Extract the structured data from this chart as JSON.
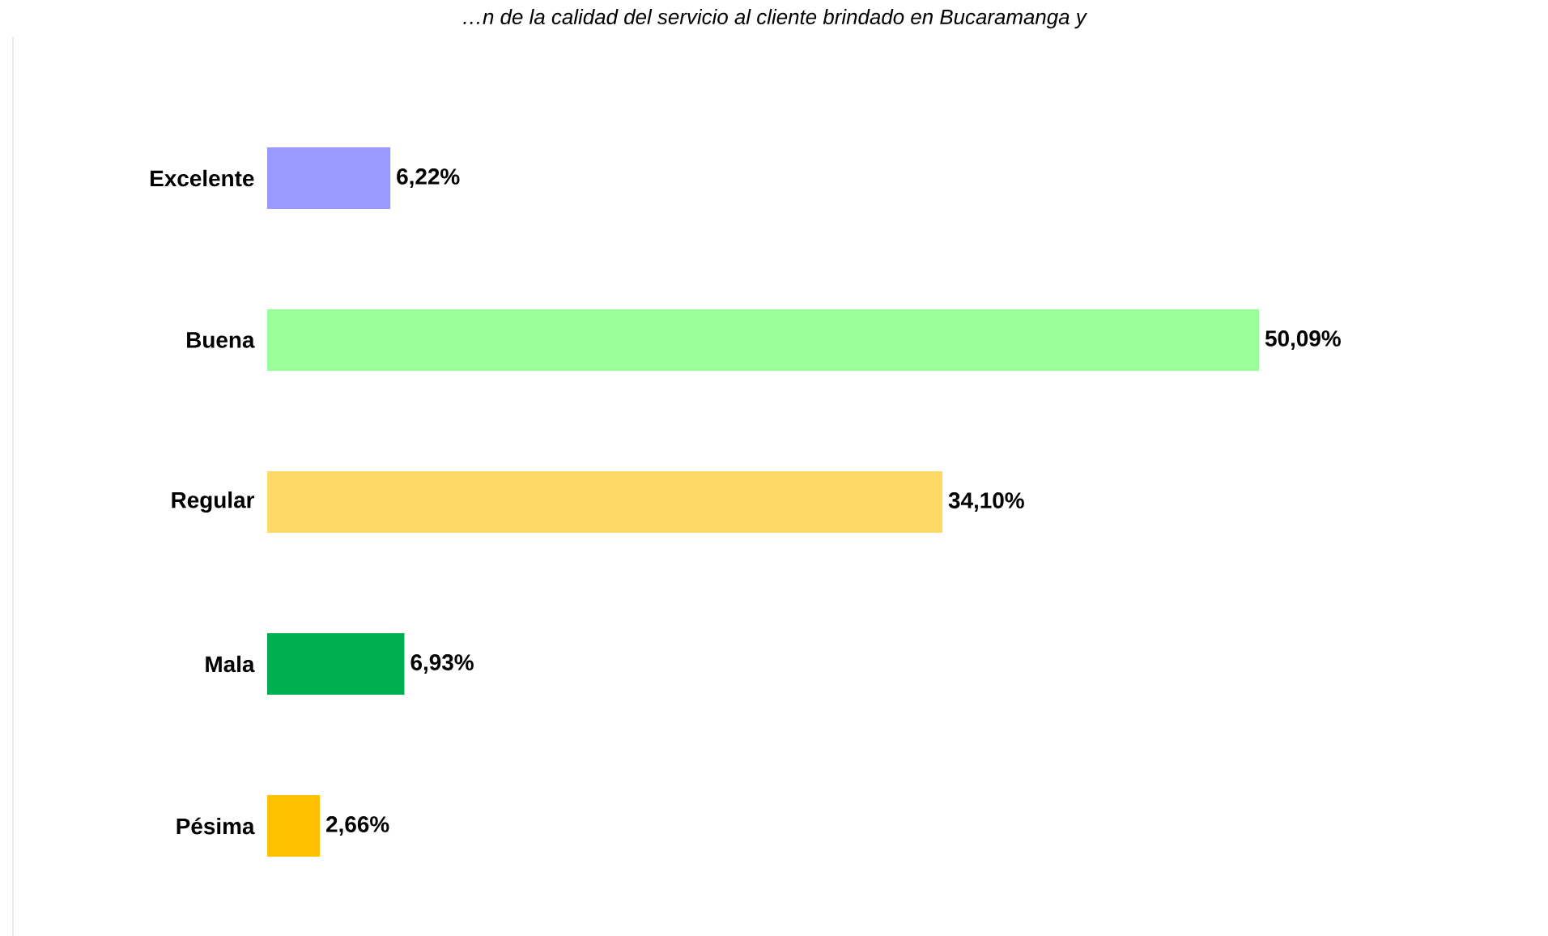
{
  "chart_data": {
    "type": "bar",
    "orientation": "horizontal",
    "title": "…n de la calidad del servicio al cliente brindado en Bucaramanga y",
    "categories": [
      "Excelente",
      "Buena",
      "Regular",
      "Mala",
      "Pésima"
    ],
    "values": [
      6.22,
      50.09,
      34.1,
      6.93,
      2.66
    ],
    "colors": [
      "#9999ff",
      "#99ff99",
      "#ffd966",
      "#00b050",
      "#ffc000"
    ],
    "value_labels": [
      "6,22%",
      "50,09%",
      "34,10%",
      "6,93%",
      "2,66%"
    ]
  }
}
